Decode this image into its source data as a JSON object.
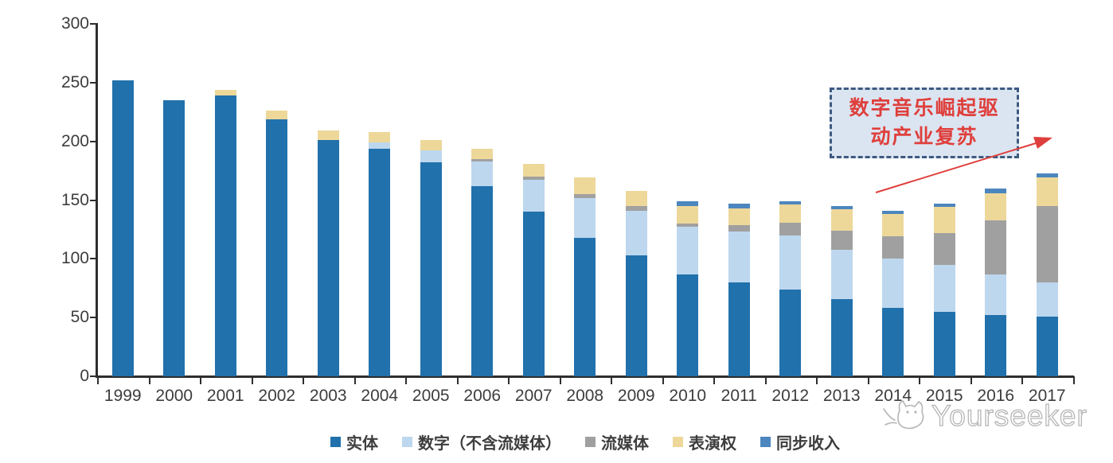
{
  "chart_data": {
    "type": "bar",
    "stacked": true,
    "title": "",
    "xlabel": "",
    "ylabel": "",
    "ylim": [
      0,
      300
    ],
    "y_ticks": [
      0,
      50,
      100,
      150,
      200,
      250,
      300
    ],
    "grid": false,
    "legend_position": "bottom",
    "categories": [
      "1999",
      "2000",
      "2001",
      "2002",
      "2003",
      "2004",
      "2005",
      "2006",
      "2007",
      "2008",
      "2009",
      "2010",
      "2011",
      "2012",
      "2013",
      "2014",
      "2015",
      "2016",
      "2017"
    ],
    "series": [
      {
        "name": "实体",
        "color": "#2171ac",
        "values": [
          252,
          235,
          239,
          219,
          201,
          194,
          182,
          162,
          140,
          118,
          103,
          87,
          80,
          74,
          66,
          58,
          55,
          52,
          51
        ]
      },
      {
        "name": "数字（不含流媒体）",
        "color": "#bdd7ee",
        "values": [
          0,
          0,
          0,
          0,
          0,
          5,
          10,
          21,
          27,
          34,
          38,
          40,
          43,
          46,
          42,
          42,
          40,
          35,
          29
        ]
      },
      {
        "name": "流媒体",
        "color": "#a0a0a0",
        "values": [
          0,
          0,
          0,
          0,
          0,
          0,
          0,
          2,
          3,
          3,
          4,
          3,
          6,
          11,
          16,
          19,
          27,
          46,
          65
        ]
      },
      {
        "name": "表演权",
        "color": "#edd89a",
        "values": [
          0,
          0,
          5,
          7,
          8,
          9,
          9,
          9,
          11,
          14,
          13,
          15,
          14,
          15,
          18,
          19,
          22,
          23,
          24
        ]
      },
      {
        "name": "同步收入",
        "color": "#4c86be",
        "values": [
          0,
          0,
          0,
          0,
          0,
          0,
          0,
          0,
          0,
          0,
          0,
          4,
          4,
          3,
          3,
          3,
          3,
          4,
          4
        ]
      }
    ],
    "annotation": {
      "line1": "数字音乐崛起驱",
      "line2": "动产业复苏",
      "text_color": "#df3f3c",
      "box_fill": "#dbe5f1",
      "box_border": "#3d5a80"
    }
  },
  "watermark": {
    "text": "Yourseeker"
  },
  "icons": {
    "cat_logo": "cat-face-outline",
    "arrow": "red-annotation-arrow"
  }
}
